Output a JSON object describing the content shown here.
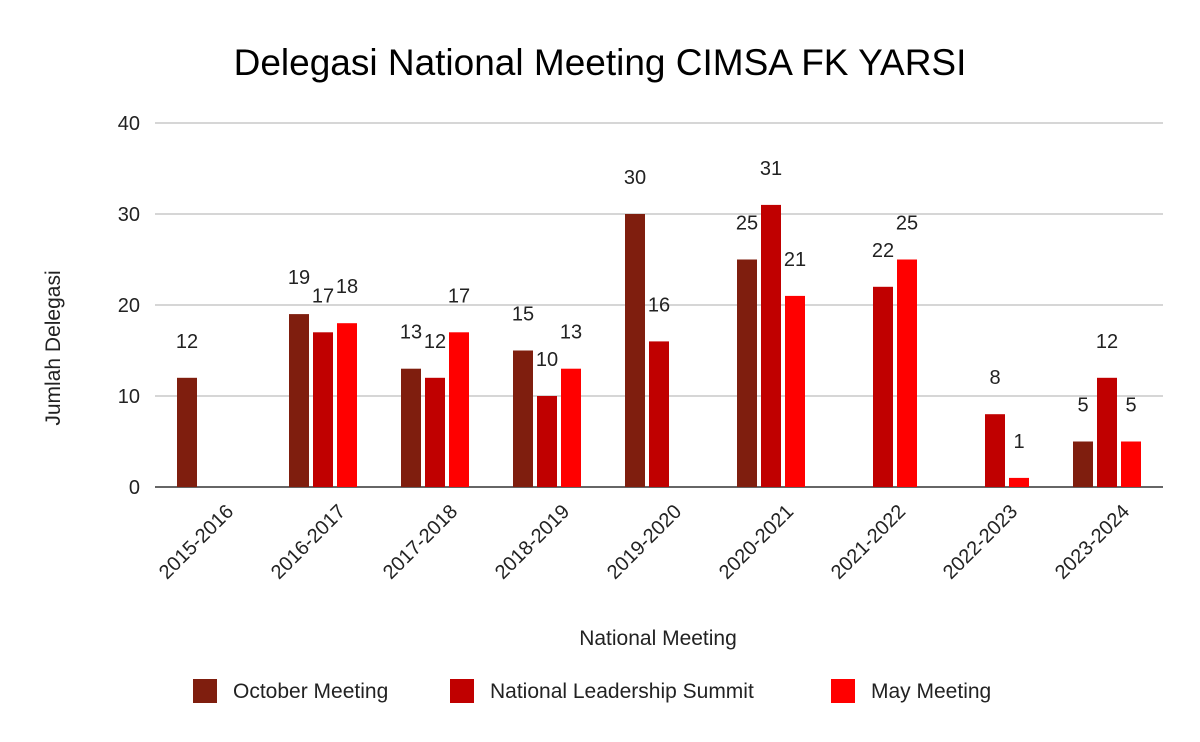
{
  "chart_data": {
    "type": "bar",
    "title": "Delegasi National Meeting CIMSA FK YARSI",
    "xlabel": "National Meeting",
    "ylabel": "Jumlah Delegasi",
    "ylim": [
      0,
      40
    ],
    "yticks": [
      0,
      10,
      20,
      30,
      40
    ],
    "grid": true,
    "legend_position": "bottom",
    "categories": [
      "2015-2016",
      "2016-2017",
      "2017-2018",
      "2018-2019",
      "2019-2020",
      "2020-2021",
      "2021-2022",
      "2022-2023",
      "2023-2024"
    ],
    "series": [
      {
        "name": "October Meeting",
        "color": "#7f1e0e",
        "values": [
          12,
          19,
          13,
          15,
          30,
          25,
          null,
          null,
          5
        ]
      },
      {
        "name": "National Leadership Summit",
        "color": "#c00000",
        "values": [
          null,
          17,
          12,
          10,
          16,
          31,
          22,
          8,
          12
        ]
      },
      {
        "name": "May Meeting",
        "color": "#ff0000",
        "values": [
          null,
          18,
          17,
          13,
          null,
          21,
          25,
          1,
          5
        ]
      }
    ]
  }
}
